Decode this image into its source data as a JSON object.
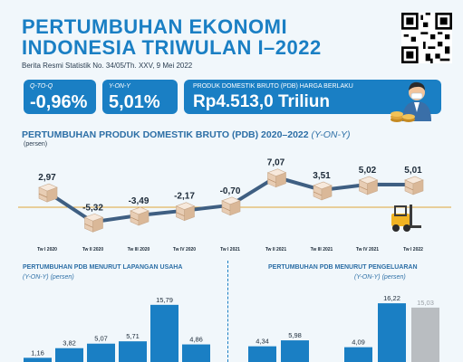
{
  "header": {
    "title_line1": "PERTUMBUHAN EKONOMI",
    "title_line2": "INDONESIA TRIWULAN I–2022",
    "subtitle": "Berita Resmi Statistik No. 34/05/Th. XXV, 9 Mei 2022"
  },
  "stats": {
    "qtoq_label": "Q-TO-Q",
    "qtoq_value": "-0,96%",
    "yony_label": "Y-ON-Y",
    "yony_value": "5,01%",
    "pdb_label": "PRODUK DOMESTIK BRUTO (PDB) HARGA BERLAKU",
    "pdb_value": "Rp4.513,0 Triliun"
  },
  "main_chart": {
    "title": "PERTUMBUHAN PRODUK DOMESTIK BRUTO (PDB) 2020–2022",
    "title_suffix": "(Y-ON-Y)",
    "unit": "(persen)"
  },
  "left_chart": {
    "title": "PERTUMBUHAN PDB MENURUT LAPANGAN USAHA",
    "subtitle": "(Y-ON-Y) (persen)"
  },
  "right_chart": {
    "title": "PERTUMBUHAN PDB MENURUT PENGELUARAN",
    "subtitle": "(Y-ON-Y) (persen)"
  },
  "colors": {
    "brand_blue": "#1a7fc4",
    "line": "#3f5f82",
    "box_face": "#eed9c6",
    "gold": "#e0a53a"
  },
  "icons": [
    "qr-code-icon",
    "mascot-icon",
    "coins-icon",
    "box-icon",
    "forklift-icon"
  ],
  "chart_data": [
    {
      "type": "line",
      "categories": [
        "Tw I 2020",
        "Tw II 2020",
        "Tw III 2020",
        "Tw IV 2020",
        "Tw I 2021",
        "Tw II 2021",
        "Tw III 2021",
        "Tw IV 2021",
        "Tw I 2022"
      ],
      "values": [
        2.97,
        -5.32,
        -3.49,
        -2.17,
        -0.7,
        7.07,
        3.51,
        5.02,
        5.01
      ],
      "value_labels": [
        "2,97",
        "-5,32",
        "-3,49",
        "-2,17",
        "-0,70",
        "7,07",
        "3,51",
        "5,02",
        "5,01"
      ],
      "ylim": [
        -7,
        9
      ]
    },
    {
      "type": "bar",
      "values": [
        1.16,
        3.82,
        5.07,
        5.71,
        15.79,
        4.86
      ],
      "value_labels": [
        "1,16",
        "3,82",
        "5,07",
        "5,71",
        "15,79",
        "4,86"
      ],
      "ylim": [
        0,
        18
      ]
    },
    {
      "type": "bar",
      "values": [
        4.34,
        5.98,
        4.09,
        16.22,
        15.03
      ],
      "value_labels": [
        "4,34",
        "5,98",
        "4,09",
        "16,22",
        "15,03"
      ],
      "ylim": [
        0,
        18
      ]
    }
  ]
}
